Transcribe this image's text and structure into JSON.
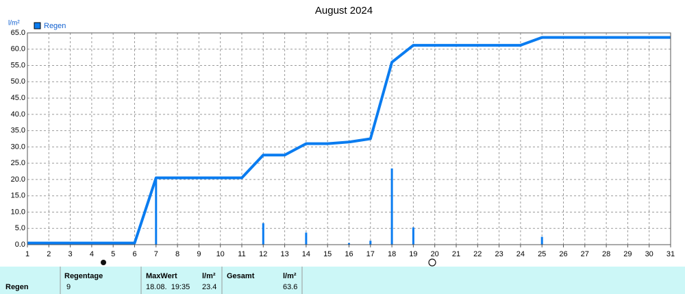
{
  "chart_data": {
    "type": "combo",
    "title": "August 2024",
    "y_label": "l/m²",
    "xlim": [
      1,
      31
    ],
    "xticks": [
      1,
      2,
      3,
      4,
      5,
      6,
      7,
      8,
      9,
      10,
      11,
      12,
      13,
      14,
      15,
      16,
      17,
      18,
      19,
      20,
      21,
      22,
      23,
      24,
      25,
      26,
      27,
      28,
      29,
      30,
      31
    ],
    "ylim": [
      0,
      65
    ],
    "yticks": [
      {
        "value": 0,
        "label": "0.0"
      },
      {
        "value": 5,
        "label": "5.0"
      },
      {
        "value": 10,
        "label": "10.0"
      },
      {
        "value": 15,
        "label": "15.0"
      },
      {
        "value": 20,
        "label": "20.0"
      },
      {
        "value": 25,
        "label": "25.0"
      },
      {
        "value": 30,
        "label": "30.0"
      },
      {
        "value": 35,
        "label": "35.0"
      },
      {
        "value": 40,
        "label": "40.0"
      },
      {
        "value": 45,
        "label": "45.0"
      },
      {
        "value": 50,
        "label": "50.0"
      },
      {
        "value": 55,
        "label": "55.0"
      },
      {
        "value": 60,
        "label": "60.0"
      },
      {
        "value": 65,
        "label": "65.0"
      }
    ],
    "grid": true,
    "series": [
      {
        "name": "Regen",
        "type": "bar",
        "color": "#0a7cf0",
        "x": [
          7,
          12,
          14,
          16,
          17,
          18,
          19,
          25
        ],
        "values": [
          20.0,
          6.6,
          3.7,
          0.5,
          1.2,
          23.4,
          5.3,
          2.4
        ]
      },
      {
        "type": "line",
        "color": "#0a7cf0",
        "x": [
          1,
          6,
          7,
          11,
          12,
          13,
          14,
          15,
          16,
          17,
          18,
          19,
          24,
          25,
          31
        ],
        "values": [
          0.5,
          0.5,
          20.5,
          20.5,
          27.5,
          27.5,
          31.0,
          31.0,
          31.5,
          32.5,
          56.0,
          61.2,
          61.2,
          63.6,
          63.6
        ]
      }
    ]
  },
  "table": {
    "row_label": "Regen",
    "headers": [
      "Regentage",
      "MaxWert",
      "l/m²",
      "Gesamt",
      "l/m²"
    ],
    "values": [
      "9",
      "18.08.  19:35",
      "23.4",
      "",
      "63.6"
    ]
  }
}
